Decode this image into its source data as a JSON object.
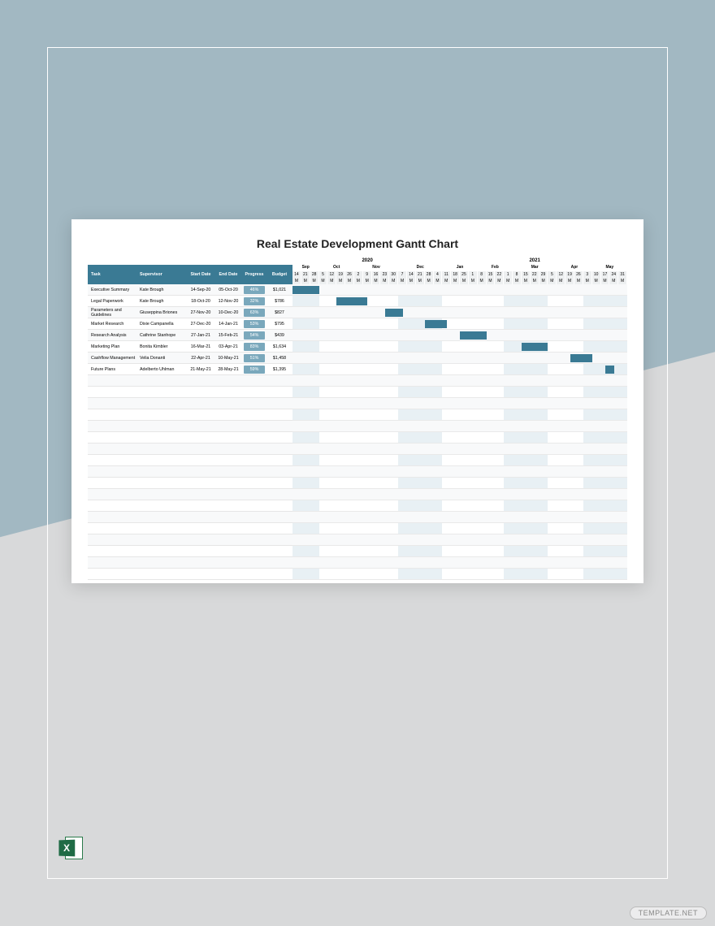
{
  "colors": {
    "bg_top": "#a2b8c2",
    "bg_bottom": "#d8d9da",
    "frame_border": "#ffffff",
    "paper_bg": "#ffffff",
    "header_bg": "#3a7a94",
    "header_fg": "#ffffff",
    "bar_fill": "#3a7a94",
    "progress_fill": "#7aa8bc",
    "stripe_bg": "#e8f0f4",
    "row_alt": "#f8f9fa",
    "grid": "#e6e6e6"
  },
  "title": "Real Estate Development Gantt Chart",
  "headers": {
    "task": "Task",
    "supervisor": "Supervisor",
    "start": "Start Date",
    "end": "End Date",
    "progress": "Progress",
    "budget": "Budget"
  },
  "timeline": {
    "years": [
      {
        "label": "2020",
        "span": 17
      },
      {
        "label": "2021",
        "span": 21
      }
    ],
    "months": [
      {
        "label": "Sep",
        "span": 3
      },
      {
        "label": "Oct",
        "span": 4
      },
      {
        "label": "Nov",
        "span": 5
      },
      {
        "label": "Dec",
        "span": 5
      },
      {
        "label": "Jan",
        "span": 4
      },
      {
        "label": "Feb",
        "span": 4
      },
      {
        "label": "Mar",
        "span": 5
      },
      {
        "label": "Apr",
        "span": 4
      },
      {
        "label": "May",
        "span": 4
      }
    ],
    "days": [
      "14",
      "21",
      "28",
      "5",
      "12",
      "19",
      "26",
      "2",
      "9",
      "16",
      "23",
      "30",
      "7",
      "14",
      "21",
      "28",
      "4",
      "11",
      "18",
      "25",
      "1",
      "8",
      "15",
      "22",
      "1",
      "8",
      "15",
      "22",
      "29",
      "5",
      "12",
      "19",
      "26",
      "3",
      "10",
      "17",
      "24",
      "31"
    ],
    "stripes": [
      {
        "start": 0,
        "span": 3
      },
      {
        "start": 12,
        "span": 5
      },
      {
        "start": 24,
        "span": 5
      },
      {
        "start": 33,
        "span": 5
      }
    ]
  },
  "tasks": [
    {
      "name": "Executive Summary",
      "supervisor": "Kate Brough",
      "start": "14-Sep-20",
      "end": "05-Oct-20",
      "progress": "46%",
      "budget": "$1,021",
      "bar_start": 0,
      "bar_span": 3
    },
    {
      "name": "Legal Paperwork",
      "supervisor": "Kate Brough",
      "start": "18-Oct-20",
      "end": "12-Nov-20",
      "progress": "32%",
      "budget": "$786",
      "bar_start": 5,
      "bar_span": 3.5
    },
    {
      "name": "Parameters and Guidelines",
      "supervisor": "Giuseppina Briones",
      "start": "27-Nov-20",
      "end": "10-Dec-20",
      "progress": "63%",
      "budget": "$827",
      "bar_start": 10.5,
      "bar_span": 2
    },
    {
      "name": "Market Research",
      "supervisor": "Dixie Campanella",
      "start": "27-Dec-20",
      "end": "14-Jan-21",
      "progress": "53%",
      "budget": "$795",
      "bar_start": 15,
      "bar_span": 2.5
    },
    {
      "name": "Research Analysis",
      "supervisor": "Cathrine Stanhope",
      "start": "27-Jan-21",
      "end": "15-Feb-21",
      "progress": "54%",
      "budget": "$439",
      "bar_start": 19,
      "bar_span": 3
    },
    {
      "name": "Marketing Plan",
      "supervisor": "Bonita Kimbler",
      "start": "16-Mar-21",
      "end": "03-Apr-21",
      "progress": "83%",
      "budget": "$1,634",
      "bar_start": 26,
      "bar_span": 3
    },
    {
      "name": "Cashflow Management",
      "supervisor": "Velia Donanti",
      "start": "22-Apr-21",
      "end": "10-May-21",
      "progress": "51%",
      "budget": "$1,458",
      "bar_start": 31.5,
      "bar_span": 2.5
    },
    {
      "name": "Future Plans",
      "supervisor": "Adelberto Uhlman",
      "start": "21-May-21",
      "end": "28-May-21",
      "progress": "59%",
      "budget": "$1,395",
      "bar_start": 35.5,
      "bar_span": 1
    }
  ],
  "empty_rows": 18,
  "excel_label": "X",
  "watermark": "TEMPLATE.NET"
}
